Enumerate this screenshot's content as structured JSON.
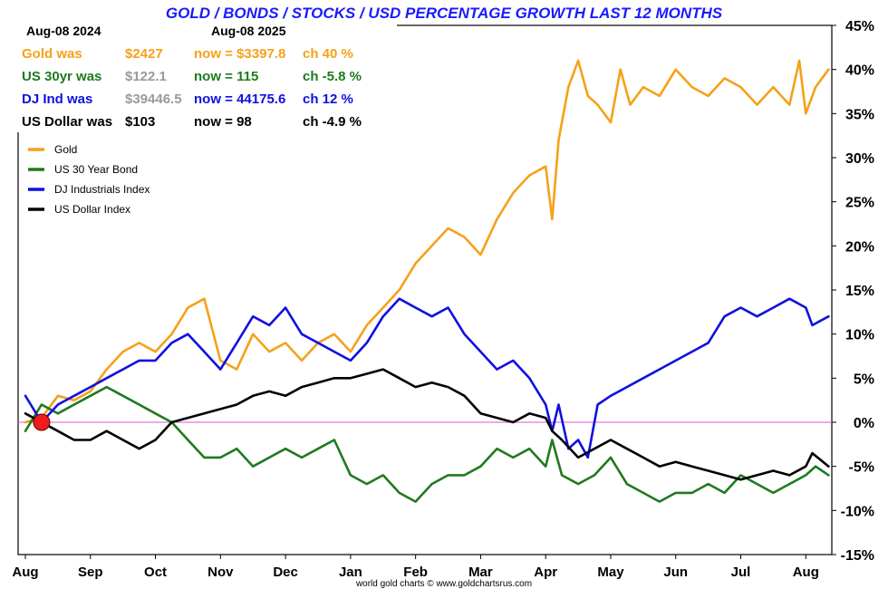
{
  "colors": {
    "gold": "#f5a11a",
    "bond": "#1f7a1f",
    "dow": "#1010e0",
    "usd": "#000000",
    "zero_line": "#d05ad0",
    "title": "#1a1aff",
    "grey_value": "#9a9a9a"
  },
  "header": {
    "date_then": "Aug-08  2024",
    "date_now": "Aug-08  2025"
  },
  "info_rows": [
    {
      "label": "Gold was",
      "was": "$2427",
      "now": "now = $3397.8",
      "ch": "ch 40 %",
      "color_key": "gold",
      "was_color_key": "gold"
    },
    {
      "label": "US 30yr was",
      "was": "$122.1",
      "now": "now = 115",
      "ch": "ch -5.8 %",
      "color_key": "bond",
      "was_color_key": "grey_value"
    },
    {
      "label": "DJ Ind was",
      "was": "$39446.5",
      "now": "now = 44175.6",
      "ch": "ch 12 %",
      "color_key": "dow",
      "was_color_key": "grey_value"
    },
    {
      "label": "US Dollar was",
      "was": "$103",
      "now": "now = 98",
      "ch": "ch -4.9 %",
      "color_key": "usd",
      "was_color_key": "usd"
    }
  ],
  "credit": "world gold charts © www.goldchartsrus.com",
  "chart_data": {
    "type": "line",
    "title": "GOLD / BONDS / STOCKS / USD PERCENTAGE GROWTH LAST 12 MONTHS",
    "xlabel": "",
    "ylabel": "",
    "ylim": [
      -15,
      45
    ],
    "xlim": [
      0,
      12.4
    ],
    "yticks": [
      45,
      40,
      35,
      30,
      25,
      20,
      15,
      10,
      5,
      0,
      -5,
      -10,
      -15
    ],
    "ytick_labels": [
      "45%",
      "40%",
      "35%",
      "30%",
      "25%",
      "20%",
      "15%",
      "10%",
      "5%",
      "0%",
      "-5%",
      "-10%",
      "-15%"
    ],
    "xticks": [
      0,
      1,
      2,
      3,
      4,
      5,
      6,
      7,
      8,
      9,
      10,
      11,
      12
    ],
    "xtick_labels": [
      "Aug",
      "Sep",
      "Oct",
      "Nov",
      "Dec",
      "Jan",
      "Feb",
      "Mar",
      "Apr",
      "May",
      "Jun",
      "Jul",
      "Aug"
    ],
    "start_marker": {
      "x": 0.25,
      "y": 0
    },
    "legend_position": "top-left",
    "series": [
      {
        "name": "Gold",
        "color_key": "gold",
        "x": [
          0,
          0.25,
          0.5,
          0.75,
          1.0,
          1.25,
          1.5,
          1.75,
          2.0,
          2.25,
          2.5,
          2.75,
          3.0,
          3.25,
          3.5,
          3.75,
          4.0,
          4.25,
          4.5,
          4.75,
          5.0,
          5.25,
          5.5,
          5.75,
          6.0,
          6.25,
          6.5,
          6.75,
          7.0,
          7.25,
          7.5,
          7.75,
          8.0,
          8.1,
          8.2,
          8.35,
          8.5,
          8.65,
          8.8,
          9.0,
          9.15,
          9.3,
          9.5,
          9.75,
          10.0,
          10.25,
          10.5,
          10.75,
          11.0,
          11.25,
          11.5,
          11.75,
          11.9,
          12.0,
          12.15,
          12.35
        ],
        "values": [
          0,
          0.5,
          3,
          2.5,
          3.5,
          6,
          8,
          9,
          8,
          10,
          13,
          14,
          7,
          6,
          10,
          8,
          9,
          7,
          9,
          10,
          8,
          11,
          13,
          15,
          18,
          20,
          22,
          21,
          19,
          23,
          26,
          28,
          29,
          23,
          32,
          38,
          41,
          37,
          36,
          34,
          40,
          36,
          38,
          37,
          40,
          38,
          37,
          39,
          38,
          36,
          38,
          36,
          41,
          35,
          38,
          40
        ]
      },
      {
        "name": "US 30 Year Bond",
        "color_key": "bond",
        "x": [
          0,
          0.25,
          0.5,
          0.75,
          1.0,
          1.25,
          1.5,
          1.75,
          2.0,
          2.25,
          2.5,
          2.75,
          3.0,
          3.25,
          3.5,
          3.75,
          4.0,
          4.25,
          4.5,
          4.75,
          5.0,
          5.25,
          5.5,
          5.75,
          6.0,
          6.25,
          6.5,
          6.75,
          7.0,
          7.25,
          7.5,
          7.75,
          8.0,
          8.1,
          8.25,
          8.5,
          8.75,
          9.0,
          9.25,
          9.5,
          9.75,
          10.0,
          10.25,
          10.5,
          10.75,
          11.0,
          11.25,
          11.5,
          11.75,
          12.0,
          12.15,
          12.35
        ],
        "values": [
          -1,
          2,
          1,
          2,
          3,
          4,
          3,
          2,
          1,
          0,
          -2,
          -4,
          -4,
          -3,
          -5,
          -4,
          -3,
          -4,
          -3,
          -2,
          -6,
          -7,
          -6,
          -8,
          -9,
          -7,
          -6,
          -6,
          -5,
          -3,
          -4,
          -3,
          -5,
          -2,
          -6,
          -7,
          -6,
          -4,
          -7,
          -8,
          -9,
          -8,
          -8,
          -7,
          -8,
          -6,
          -7,
          -8,
          -7,
          -6,
          -5,
          -6
        ]
      },
      {
        "name": "DJ Industrials Index",
        "color_key": "dow",
        "x": [
          0,
          0.25,
          0.5,
          0.75,
          1.0,
          1.25,
          1.5,
          1.75,
          2.0,
          2.25,
          2.5,
          2.75,
          3.0,
          3.25,
          3.5,
          3.75,
          4.0,
          4.25,
          4.5,
          4.75,
          5.0,
          5.25,
          5.5,
          5.75,
          6.0,
          6.25,
          6.5,
          6.75,
          7.0,
          7.25,
          7.5,
          7.75,
          8.0,
          8.1,
          8.2,
          8.35,
          8.5,
          8.65,
          8.8,
          9.0,
          9.25,
          9.5,
          9.75,
          10.0,
          10.25,
          10.5,
          10.75,
          11.0,
          11.25,
          11.5,
          11.75,
          12.0,
          12.1,
          12.35
        ],
        "values": [
          3,
          0,
          2,
          3,
          4,
          5,
          6,
          7,
          7,
          9,
          10,
          8,
          6,
          9,
          12,
          11,
          13,
          10,
          9,
          8,
          7,
          9,
          12,
          14,
          13,
          12,
          13,
          10,
          8,
          6,
          7,
          5,
          2,
          -1,
          2,
          -3,
          -2,
          -4,
          2,
          3,
          4,
          5,
          6,
          7,
          8,
          9,
          12,
          13,
          12,
          13,
          14,
          13,
          11,
          12
        ]
      },
      {
        "name": "US Dollar Index",
        "color_key": "usd",
        "x": [
          0,
          0.25,
          0.5,
          0.75,
          1.0,
          1.25,
          1.5,
          1.75,
          2.0,
          2.25,
          2.5,
          2.75,
          3.0,
          3.25,
          3.5,
          3.75,
          4.0,
          4.25,
          4.5,
          4.75,
          5.0,
          5.25,
          5.5,
          5.75,
          6.0,
          6.25,
          6.5,
          6.75,
          7.0,
          7.25,
          7.5,
          7.75,
          8.0,
          8.1,
          8.25,
          8.5,
          8.75,
          9.0,
          9.25,
          9.5,
          9.75,
          10.0,
          10.25,
          10.5,
          10.75,
          11.0,
          11.25,
          11.5,
          11.75,
          12.0,
          12.1,
          12.35
        ],
        "values": [
          1,
          0,
          -1,
          -2,
          -2,
          -1,
          -2,
          -3,
          -2,
          0,
          0.5,
          1,
          1.5,
          2,
          3,
          3.5,
          3,
          4,
          4.5,
          5,
          5,
          5.5,
          6,
          5,
          4,
          4.5,
          4,
          3,
          1,
          0.5,
          0,
          1,
          0.5,
          -1,
          -2,
          -4,
          -3,
          -2,
          -3,
          -4,
          -5,
          -4.5,
          -5,
          -5.5,
          -6,
          -6.5,
          -6,
          -5.5,
          -6,
          -5,
          -3.5,
          -5
        ]
      }
    ]
  }
}
